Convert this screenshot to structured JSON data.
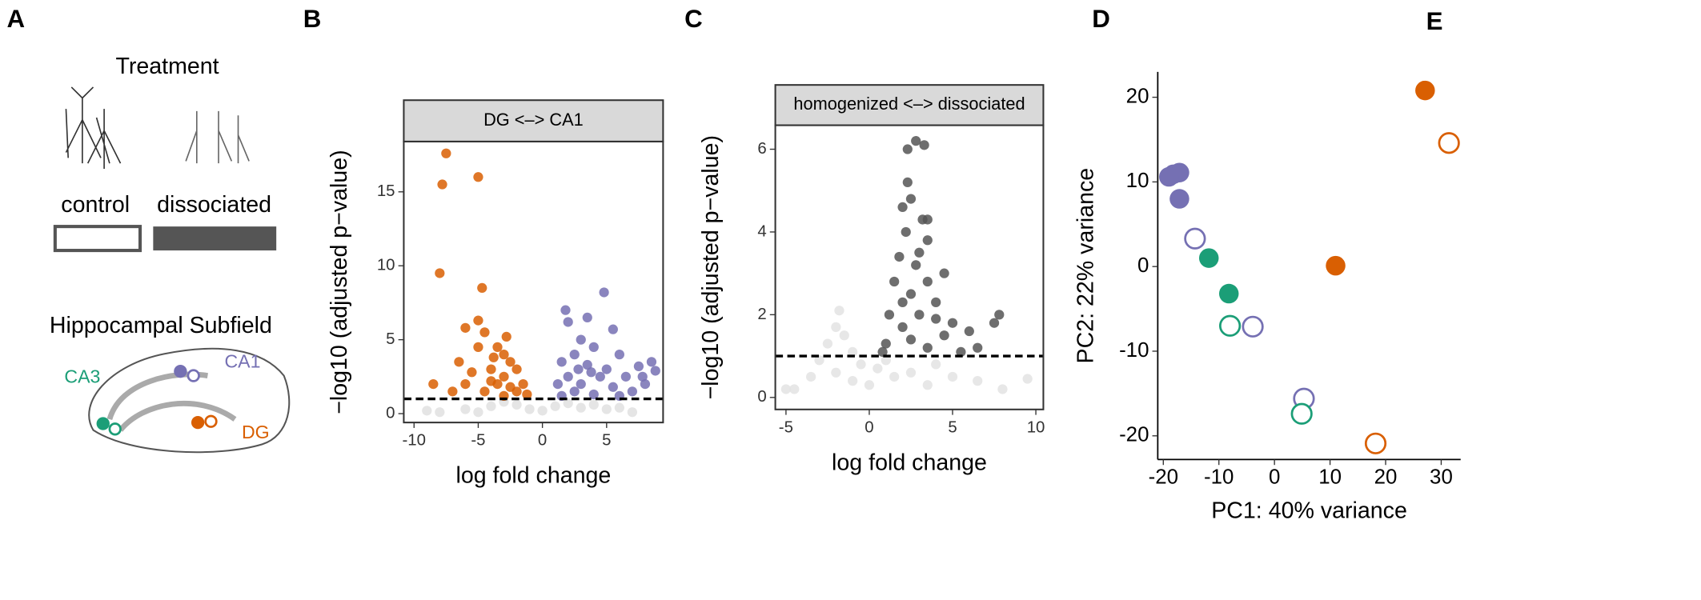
{
  "panel_labels": [
    "A",
    "B",
    "C",
    "D",
    "E"
  ],
  "panel_a": {
    "treatment_title": "Treatment",
    "treatments": [
      "control",
      "dissociated"
    ],
    "subfield_title": "Hippocampal Subfield",
    "subfields": [
      "CA3",
      "CA1",
      "DG"
    ]
  },
  "chart_data": [
    {
      "type": "volcano",
      "title": "DG <–> CA1",
      "xlabel": "log fold change",
      "ylabel": "−log10 (adjusted p−value)",
      "xlim": [
        -10.8,
        9.4
      ],
      "xticks": [
        -10,
        -5,
        0,
        5
      ],
      "ylim": [
        -0.6,
        18.4
      ],
      "yticks": [
        0,
        5,
        10,
        15
      ],
      "hline": 1,
      "series": [
        {
          "color": "#e0e0e0",
          "filled": true,
          "x": [
            -8,
            -6,
            -4,
            -2,
            -1,
            0,
            1,
            2,
            3,
            5,
            7,
            -9,
            -3,
            4,
            -5,
            6
          ],
          "values": [
            0.1,
            0.3,
            0.5,
            0.6,
            0.3,
            0.2,
            0.5,
            0.7,
            0.4,
            0.3,
            0.1,
            0.2,
            0.8,
            0.6,
            0.1,
            0.4
          ]
        },
        {
          "color": "#d95f02",
          "filled": true,
          "x": [
            -7.5,
            -7.8,
            -5,
            -8,
            -4.7,
            -5,
            -6,
            -4.5,
            -3.5,
            -3,
            -2.5,
            -4,
            -2,
            -3,
            -5.5,
            -6,
            -7,
            -8.5,
            -3.5,
            -2,
            -1.5,
            -4.5,
            -3,
            -2.5,
            -6.5,
            -5,
            -4,
            -1.2,
            -3.8,
            -2.8
          ],
          "values": [
            17.6,
            15.5,
            16,
            9.5,
            8.5,
            6.3,
            5.8,
            5.5,
            4.5,
            4,
            3.5,
            3,
            3,
            2.5,
            2.8,
            2,
            1.5,
            2,
            2,
            1.5,
            2,
            1.5,
            1.2,
            1.8,
            3.5,
            4.5,
            2.2,
            1.3,
            3.8,
            5.2
          ]
        },
        {
          "color": "#7570b3",
          "filled": true,
          "x": [
            4.8,
            2,
            3.5,
            1.8,
            5.5,
            3,
            4,
            2.5,
            6,
            1.5,
            3.5,
            7.5,
            8.5,
            5,
            2,
            4.5,
            6.5,
            8,
            1.2,
            3,
            5.5,
            2.5,
            7,
            4,
            1.5,
            6,
            3.8,
            8.8,
            2.8,
            7.8
          ],
          "values": [
            8.2,
            6.2,
            6.5,
            7,
            5.7,
            5,
            4.5,
            4,
            4,
            3.5,
            3.3,
            3.2,
            3.5,
            3,
            2.5,
            2.5,
            2.5,
            2,
            2,
            2,
            1.8,
            1.5,
            1.5,
            1.3,
            1.2,
            1.2,
            2.8,
            2.9,
            3,
            2.5
          ]
        }
      ]
    },
    {
      "type": "volcano",
      "title": "homogenized <–> dissociated",
      "xlabel": "log fold change",
      "ylabel": "−log10 (adjusted p−value)",
      "xlim": [
        -5.64,
        10.45
      ],
      "xticks": [
        -5,
        0,
        5,
        10
      ],
      "ylim": [
        -0.29,
        6.58
      ],
      "yticks": [
        0,
        2,
        4,
        6
      ],
      "hline": 1,
      "series": [
        {
          "color": "#e3e3e3",
          "filled": true,
          "x": [
            -1.8,
            -2,
            -1.5,
            -2.5,
            -1,
            -3,
            -4.5,
            -3.5,
            -2,
            -1,
            0,
            0.5,
            1.5,
            2.5,
            3.5,
            5,
            6.5,
            8,
            9.5,
            -0.5,
            1,
            4,
            -5
          ],
          "values": [
            2.1,
            1.7,
            1.5,
            1.3,
            1.1,
            0.9,
            0.2,
            0.5,
            0.6,
            0.4,
            0.3,
            0.7,
            0.5,
            0.6,
            0.3,
            0.5,
            0.4,
            0.2,
            0.45,
            0.8,
            0.9,
            0.8,
            0.2
          ]
        },
        {
          "color": "#555555",
          "filled": true,
          "x": [
            2.8,
            2.3,
            3.3,
            2.3,
            2.5,
            2,
            3.2,
            3.5,
            2.2,
            3.5,
            3,
            1.8,
            2.8,
            4.5,
            3.5,
            1.5,
            2.5,
            2,
            4,
            3,
            1.2,
            5,
            7.8,
            7.5,
            6,
            4.5,
            2.5,
            1,
            3.5,
            5.5,
            0.8,
            2,
            4,
            6.5
          ],
          "values": [
            6.2,
            6.0,
            6.1,
            5.2,
            4.8,
            4.6,
            4.3,
            4.3,
            4.0,
            3.8,
            3.5,
            3.4,
            3.2,
            3.0,
            2.8,
            2.8,
            2.5,
            2.3,
            2.3,
            2.0,
            2.0,
            1.8,
            2.0,
            1.8,
            1.6,
            1.5,
            1.4,
            1.3,
            1.2,
            1.1,
            1.1,
            1.7,
            1.9,
            1.2
          ]
        }
      ]
    },
    {
      "type": "scatter",
      "xlabel": "PC1: 40% variance",
      "ylabel": "PC2: 22% variance",
      "xlim": [
        -21,
        33.5
      ],
      "xticks": [
        -20,
        -10,
        0,
        10,
        20,
        30
      ],
      "ylim": [
        -22.8,
        23
      ],
      "yticks": [
        -20,
        -10,
        0,
        10,
        20
      ],
      "series": [
        {
          "color": "#7570b3",
          "filled": true,
          "x": [
            -18.2,
            -17.1,
            -19,
            -17.1
          ],
          "values": [
            10.9,
            11.1,
            10.6,
            8.0
          ]
        },
        {
          "color": "#7570b3",
          "filled": false,
          "x": [
            -14.3,
            -3.9,
            5.3
          ],
          "values": [
            3.3,
            -7.1,
            -15.6
          ]
        },
        {
          "color": "#1b9e77",
          "filled": true,
          "x": [
            -11.8,
            -8.2
          ],
          "values": [
            1.0,
            -3.2
          ]
        },
        {
          "color": "#1b9e77",
          "filled": false,
          "x": [
            -8.0,
            4.9
          ],
          "values": [
            -7.0,
            -17.4
          ]
        },
        {
          "color": "#d95f02",
          "filled": true,
          "x": [
            27.1,
            11.0
          ],
          "values": [
            20.8,
            0.1
          ]
        },
        {
          "color": "#d95f02",
          "filled": false,
          "x": [
            31.4,
            18.2
          ],
          "values": [
            14.6,
            -20.9
          ]
        }
      ]
    }
  ]
}
